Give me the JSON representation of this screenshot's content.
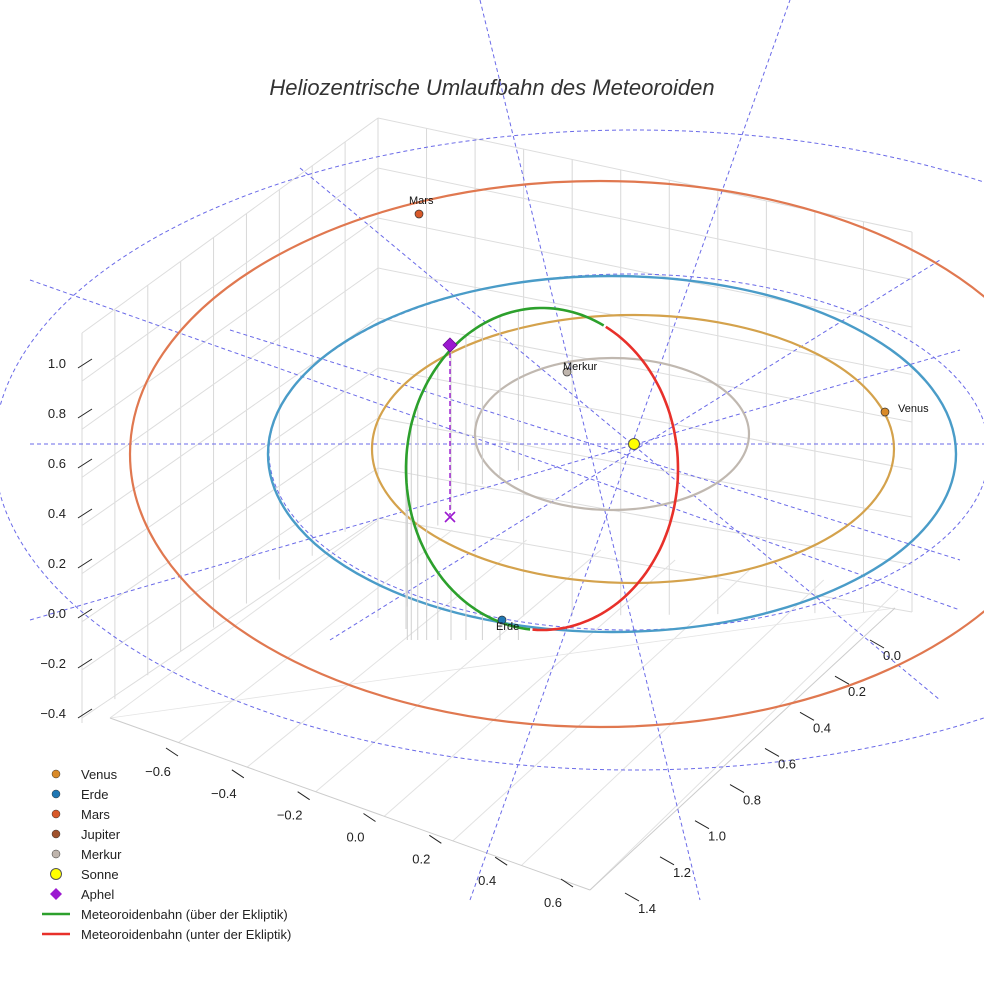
{
  "chart_data": {
    "type": "scatter3d",
    "title": "Heliozentrische Umlaufbahn des Meteoroiden",
    "axes": {
      "x": {
        "range": [
          -0.7,
          0.7
        ],
        "ticks": [
          -0.6,
          -0.4,
          -0.2,
          0.0,
          0.2,
          0.4,
          0.6
        ],
        "tick_labels": [
          "−0.6",
          "−0.4",
          "−0.2",
          "0.0",
          "0.2",
          "0.4",
          "0.6"
        ]
      },
      "y": {
        "range": [
          -0.05,
          1.45
        ],
        "ticks": [
          0.0,
          0.2,
          0.4,
          0.6,
          0.8,
          1.0,
          1.2,
          1.4
        ],
        "tick_labels": [
          "0.0",
          "0.2",
          "0.4",
          "0.6",
          "0.8",
          "1.0",
          "1.2",
          "1.4"
        ]
      },
      "z": {
        "range": [
          -0.45,
          1.15
        ],
        "ticks": [
          -0.4,
          -0.2,
          0.0,
          0.2,
          0.4,
          0.6,
          0.8,
          1.0
        ],
        "tick_labels": [
          "−0.4",
          "−0.2",
          "0.0",
          "0.2",
          "0.4",
          "0.6",
          "0.8",
          "1.0"
        ]
      },
      "grid": true
    },
    "orbits": [
      {
        "name": "Merkur",
        "semi_major_axis": 0.39,
        "color": "#c0b8b0"
      },
      {
        "name": "Venus",
        "semi_major_axis": 0.72,
        "color": "#d4a24c"
      },
      {
        "name": "Erde",
        "semi_major_axis": 1.0,
        "color": "#4a9cc8"
      },
      {
        "name": "Mars",
        "semi_major_axis": 1.52,
        "color": "#e07850"
      }
    ],
    "planets": [
      {
        "name": "Venus",
        "label": "Venus",
        "color": "#d98a28"
      },
      {
        "name": "Erde",
        "label": "Erde",
        "color": "#1f77b4"
      },
      {
        "name": "Mars",
        "label": "Mars",
        "color": "#d85a2a"
      },
      {
        "name": "Merkur",
        "label": "Merkur",
        "color": "#bfb5ad"
      },
      {
        "name": "Sonne",
        "label": "",
        "color": "#ffff00"
      }
    ],
    "meteoroid_orbit": {
      "above": {
        "name": "Meteoroidenbahn (über der Ekliptik)",
        "color": "#2ca02c"
      },
      "below": {
        "name": "Meteoroidenbahn (unter der Ekliptik)",
        "color": "#e8302a"
      }
    },
    "aphel": {
      "name": "Aphel",
      "color": "#9b19d0"
    },
    "legend": [
      {
        "label": "Venus",
        "color": "#d98a28",
        "kind": "dot"
      },
      {
        "label": "Erde",
        "color": "#1f77b4",
        "kind": "dot"
      },
      {
        "label": "Mars",
        "color": "#d85a2a",
        "kind": "dot"
      },
      {
        "label": "Jupiter",
        "color": "#a0522d",
        "kind": "dot"
      },
      {
        "label": "Merkur",
        "color": "#bfb5ad",
        "kind": "dot"
      },
      {
        "label": "Sonne",
        "color": "#ffff00",
        "kind": "bigdot"
      },
      {
        "label": "Aphel",
        "color": "#9b19d0",
        "kind": "diamond"
      },
      {
        "label": "Meteoroidenbahn (über der Ekliptik)",
        "color": "#2ca02c",
        "kind": "line"
      },
      {
        "label": "Meteoroidenbahn (unter der Ekliptik)",
        "color": "#e8302a",
        "kind": "line"
      }
    ]
  }
}
